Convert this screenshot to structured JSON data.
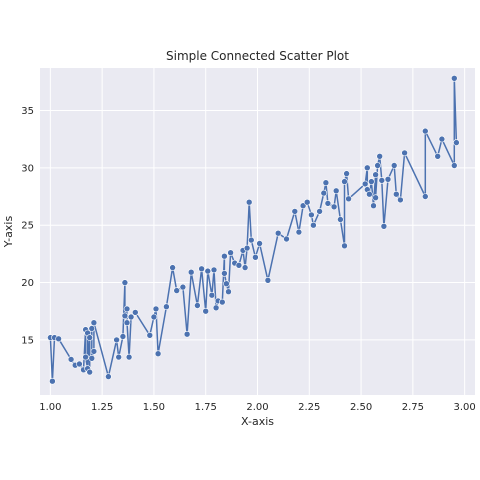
{
  "chart_data": {
    "type": "line",
    "title": "Simple Connected Scatter Plot",
    "xlabel": "X-axis",
    "ylabel": "Y-axis",
    "xlim": [
      0.95,
      3.05
    ],
    "ylim": [
      10.2,
      38.7
    ],
    "xticks": [
      1.0,
      1.25,
      1.5,
      1.75,
      2.0,
      2.25,
      2.5,
      2.75,
      3.0
    ],
    "xtick_labels": [
      "1.00",
      "1.25",
      "1.50",
      "1.75",
      "2.00",
      "2.25",
      "2.50",
      "2.75",
      "3.00"
    ],
    "yticks": [
      15,
      20,
      25,
      30,
      35
    ],
    "ytick_labels": [
      "15",
      "20",
      "25",
      "30",
      "35"
    ],
    "grid": true,
    "background": "#eaeaf2",
    "series_color": "#4c72b0",
    "markers": true,
    "points": [
      [
        1.0,
        15.2
      ],
      [
        1.01,
        11.4
      ],
      [
        1.02,
        15.2
      ],
      [
        1.04,
        15.1
      ],
      [
        1.1,
        13.3
      ],
      [
        1.12,
        12.8
      ],
      [
        1.14,
        12.9
      ],
      [
        1.16,
        12.4
      ],
      [
        1.17,
        15.9
      ],
      [
        1.17,
        13.5
      ],
      [
        1.18,
        12.5
      ],
      [
        1.18,
        15.6
      ],
      [
        1.19,
        12.2
      ],
      [
        1.19,
        15.2
      ],
      [
        1.2,
        16.0
      ],
      [
        1.2,
        13.4
      ],
      [
        1.21,
        14.0
      ],
      [
        1.21,
        16.5
      ],
      [
        1.28,
        11.8
      ],
      [
        1.32,
        15.0
      ],
      [
        1.33,
        13.5
      ],
      [
        1.35,
        15.3
      ],
      [
        1.36,
        20.0
      ],
      [
        1.36,
        17.1
      ],
      [
        1.37,
        17.7
      ],
      [
        1.37,
        16.5
      ],
      [
        1.38,
        13.5
      ],
      [
        1.39,
        17.0
      ],
      [
        1.41,
        17.4
      ],
      [
        1.48,
        15.4
      ],
      [
        1.5,
        17.0
      ],
      [
        1.51,
        17.7
      ],
      [
        1.52,
        13.8
      ],
      [
        1.56,
        17.9
      ],
      [
        1.59,
        21.3
      ],
      [
        1.61,
        19.3
      ],
      [
        1.64,
        19.6
      ],
      [
        1.66,
        15.5
      ],
      [
        1.68,
        20.9
      ],
      [
        1.71,
        18.0
      ],
      [
        1.73,
        21.2
      ],
      [
        1.75,
        17.5
      ],
      [
        1.76,
        21.0
      ],
      [
        1.78,
        18.9
      ],
      [
        1.79,
        21.1
      ],
      [
        1.8,
        17.8
      ],
      [
        1.81,
        18.4
      ],
      [
        1.83,
        18.3
      ],
      [
        1.84,
        22.3
      ],
      [
        1.84,
        20.8
      ],
      [
        1.85,
        19.9
      ],
      [
        1.86,
        19.2
      ],
      [
        1.87,
        22.6
      ],
      [
        1.89,
        21.7
      ],
      [
        1.91,
        21.5
      ],
      [
        1.93,
        22.8
      ],
      [
        1.94,
        21.3
      ],
      [
        1.95,
        23.0
      ],
      [
        1.96,
        27.0
      ],
      [
        1.97,
        23.7
      ],
      [
        1.99,
        22.2
      ],
      [
        2.01,
        23.4
      ],
      [
        2.05,
        20.2
      ],
      [
        2.1,
        24.3
      ],
      [
        2.14,
        23.8
      ],
      [
        2.18,
        26.2
      ],
      [
        2.2,
        24.4
      ],
      [
        2.22,
        26.7
      ],
      [
        2.24,
        27.0
      ],
      [
        2.26,
        25.9
      ],
      [
        2.27,
        25.0
      ],
      [
        2.3,
        26.2
      ],
      [
        2.32,
        27.8
      ],
      [
        2.33,
        28.7
      ],
      [
        2.34,
        26.9
      ],
      [
        2.37,
        26.6
      ],
      [
        2.38,
        28.0
      ],
      [
        2.4,
        25.5
      ],
      [
        2.42,
        23.2
      ],
      [
        2.42,
        28.8
      ],
      [
        2.43,
        29.5
      ],
      [
        2.44,
        27.3
      ],
      [
        2.52,
        28.6
      ],
      [
        2.53,
        30.0
      ],
      [
        2.53,
        28.1
      ],
      [
        2.54,
        27.7
      ],
      [
        2.55,
        28.8
      ],
      [
        2.56,
        26.7
      ],
      [
        2.57,
        29.4
      ],
      [
        2.57,
        27.4
      ],
      [
        2.58,
        30.2
      ],
      [
        2.59,
        31.0
      ],
      [
        2.6,
        28.9
      ],
      [
        2.61,
        24.9
      ],
      [
        2.63,
        29.0
      ],
      [
        2.66,
        30.2
      ],
      [
        2.67,
        27.7
      ],
      [
        2.69,
        27.2
      ],
      [
        2.71,
        31.3
      ],
      [
        2.81,
        27.5
      ],
      [
        2.81,
        33.2
      ],
      [
        2.87,
        31.0
      ],
      [
        2.89,
        32.5
      ],
      [
        2.95,
        30.2
      ],
      [
        2.95,
        37.8
      ],
      [
        2.96,
        32.2
      ]
    ]
  }
}
